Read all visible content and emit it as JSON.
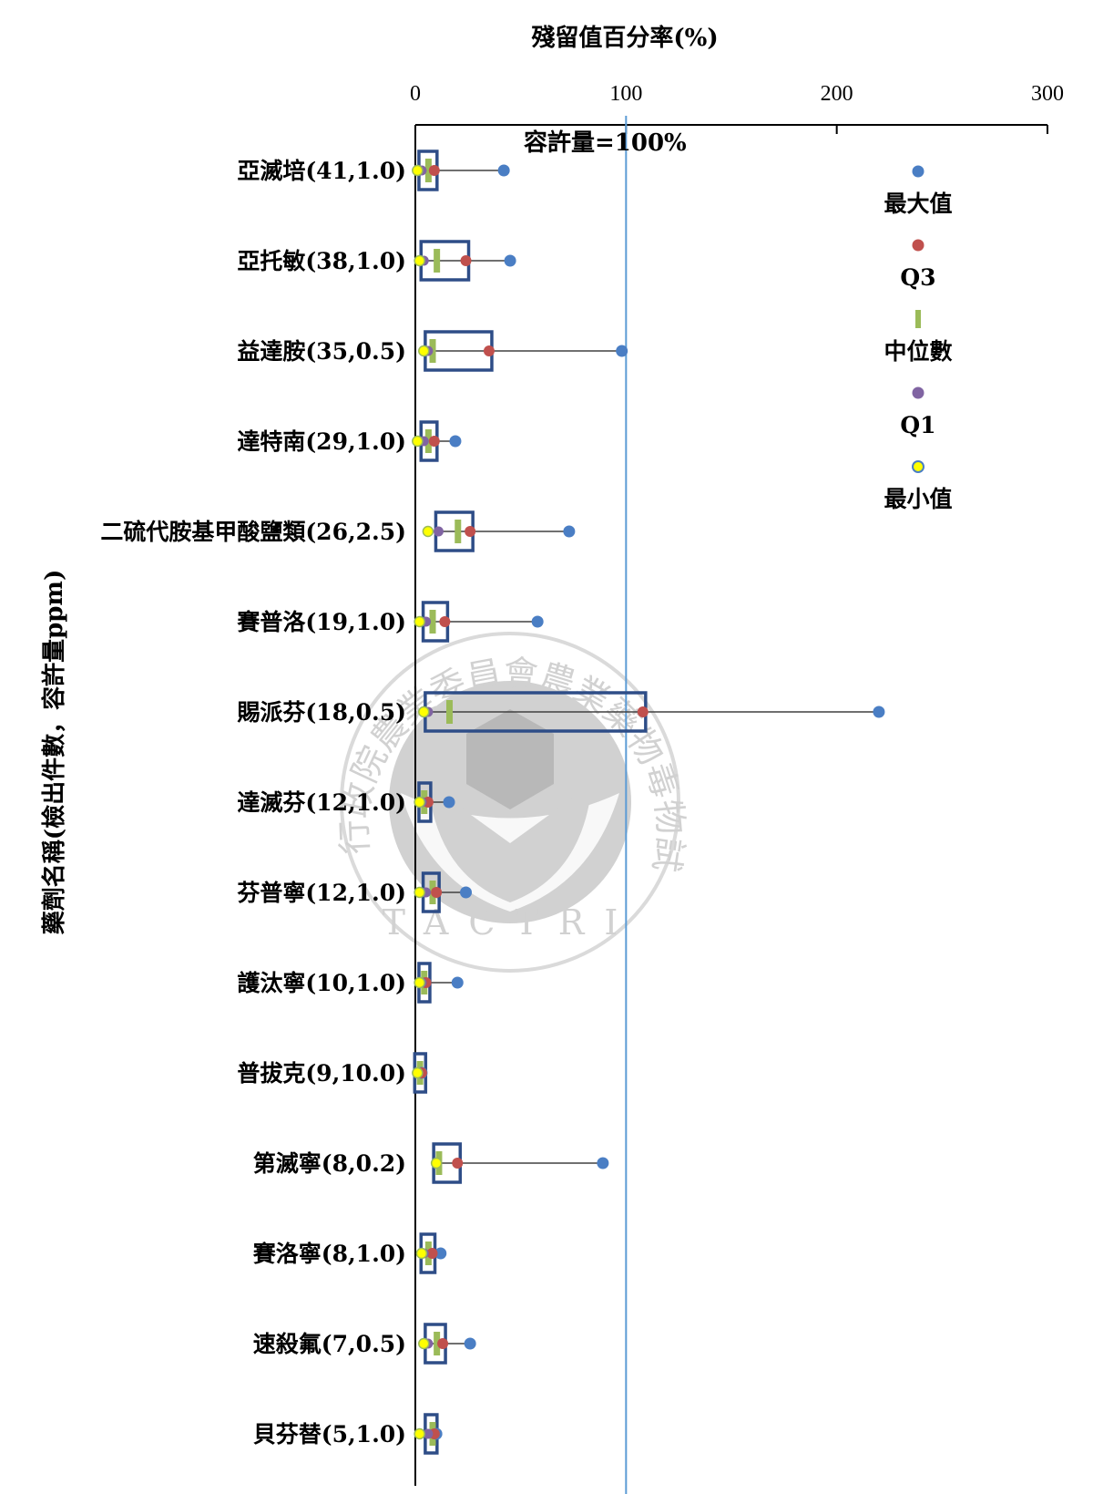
{
  "chart_data": {
    "type": "box-plot",
    "orientation": "horizontal",
    "xlabel": "殘留值百分率(%)",
    "ylabel": "藥劑名稱(檢出件數，容許量ppm)",
    "xlim": [
      0,
      300
    ],
    "x_ticks": [
      0,
      100,
      200,
      300
    ],
    "reference_line": {
      "x": 100,
      "label": "容許量=100%"
    },
    "legend": [
      {
        "name": "最大值",
        "marker": "dot",
        "color": "#4a7ec4"
      },
      {
        "name": "Q3",
        "marker": "dot",
        "color": "#c0504d"
      },
      {
        "name": "中位數",
        "marker": "bar",
        "color": "#9bbb59"
      },
      {
        "name": "Q1",
        "marker": "dot",
        "color": "#8064a2"
      },
      {
        "name": "最小值",
        "marker": "ring",
        "color": "#ffff00"
      }
    ],
    "categories": [
      {
        "label": "亞滅培(41,1.0)",
        "min": 1,
        "q1": 3,
        "median": 6,
        "q3": 9,
        "max": 42
      },
      {
        "label": "亞托敏(38,1.0)",
        "min": 2,
        "q1": 4,
        "median": 10,
        "q3": 24,
        "max": 45
      },
      {
        "label": "益達胺(35,0.5)",
        "min": 4,
        "q1": 6,
        "median": 8,
        "q3": 35,
        "max": 98
      },
      {
        "label": "達特南(29,1.0)",
        "min": 1,
        "q1": 4,
        "median": 6,
        "q3": 9,
        "max": 19
      },
      {
        "label": "二硫代胺基甲酸鹽類(26,2.5)",
        "min": 6,
        "q1": 11,
        "median": 20,
        "q3": 26,
        "max": 73
      },
      {
        "label": "賽普洛(19,1.0)",
        "min": 2,
        "q1": 5,
        "median": 8,
        "q3": 14,
        "max": 58
      },
      {
        "label": "賜派芬(18,0.5)",
        "min": 4,
        "q1": 6,
        "median": 16,
        "q3": 108,
        "max": 220
      },
      {
        "label": "達滅芬(12,1.0)",
        "min": 2,
        "q1": 3,
        "median": 4,
        "q3": 6,
        "max": 16
      },
      {
        "label": "芬普寧(12,1.0)",
        "min": 2,
        "q1": 5,
        "median": 8,
        "q3": 10,
        "max": 24
      },
      {
        "label": "護汰寧(10,1.0)",
        "min": 2,
        "q1": 3,
        "median": 4,
        "q3": 5,
        "max": 20
      },
      {
        "label": "普拔克(9,10.0)",
        "min": 1,
        "q1": 1,
        "median": 2,
        "q3": 3,
        "max": 3
      },
      {
        "label": "第滅寧(8,0.2)",
        "min": 10,
        "q1": 10,
        "median": 11,
        "q3": 20,
        "max": 89
      },
      {
        "label": "賽洛寧(8,1.0)",
        "min": 3,
        "q1": 4,
        "median": 6,
        "q3": 8,
        "max": 12
      },
      {
        "label": "速殺氟(7,0.5)",
        "min": 4,
        "q1": 6,
        "median": 10,
        "q3": 13,
        "max": 26
      },
      {
        "label": "貝芬替(5,1.0)",
        "min": 2,
        "q1": 6,
        "median": 8,
        "q3": 9,
        "max": 10
      }
    ]
  },
  "watermark": {
    "text_arc": "行政院農業委員會農業藥物毒物試驗所",
    "initials": "TACTRI"
  }
}
